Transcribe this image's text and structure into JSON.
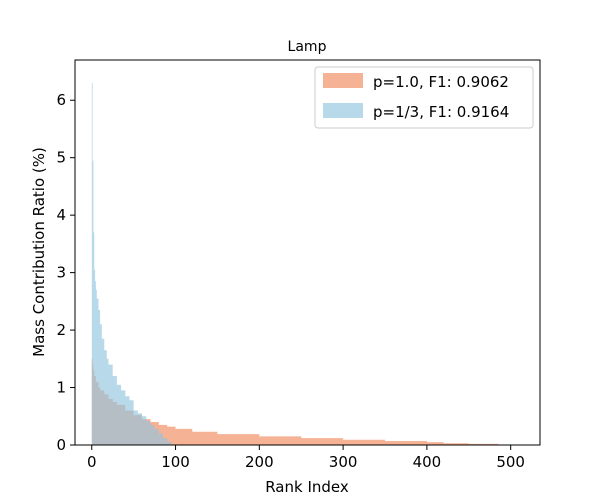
{
  "chart_data": {
    "type": "area",
    "title": "Lamp",
    "xlabel": "Rank Index",
    "ylabel": "Mass Contribution Ratio (%)",
    "xlim": [
      -20,
      535
    ],
    "ylim": [
      0,
      6.7
    ],
    "x_ticks": [
      0,
      100,
      200,
      300,
      400,
      500
    ],
    "y_ticks": [
      0,
      1,
      2,
      3,
      4,
      5,
      6
    ],
    "grid": false,
    "legend_position": "top-right",
    "series": [
      {
        "name": "p=1.0, F1: 0.9062",
        "color": "#f4a582",
        "x": [
          0,
          1,
          2,
          3,
          5,
          8,
          10,
          15,
          20,
          25,
          30,
          40,
          50,
          60,
          70,
          80,
          90,
          100,
          120,
          150,
          200,
          250,
          300,
          350,
          400,
          420,
          450,
          485
        ],
        "values": [
          1.5,
          1.4,
          1.3,
          1.2,
          1.1,
          1.0,
          0.95,
          0.88,
          0.8,
          0.75,
          0.7,
          0.6,
          0.52,
          0.45,
          0.4,
          0.35,
          0.32,
          0.28,
          0.23,
          0.19,
          0.15,
          0.12,
          0.09,
          0.07,
          0.05,
          0.03,
          0.02,
          0.01
        ]
      },
      {
        "name": "p=1/3, F1: 0.9164",
        "color": "#92c5de",
        "x": [
          0,
          1,
          2,
          3,
          4,
          5,
          6,
          8,
          10,
          12,
          15,
          18,
          20,
          25,
          30,
          35,
          40,
          45,
          50,
          55,
          60,
          65,
          70,
          75,
          80,
          85,
          90,
          95
        ],
        "values": [
          6.3,
          4.95,
          3.7,
          3.05,
          2.85,
          2.7,
          2.55,
          2.35,
          2.1,
          1.85,
          1.65,
          1.5,
          1.4,
          1.2,
          1.05,
          0.95,
          0.85,
          0.78,
          0.6,
          0.55,
          0.5,
          0.42,
          0.35,
          0.28,
          0.2,
          0.12,
          0.06,
          0.01
        ]
      }
    ]
  }
}
